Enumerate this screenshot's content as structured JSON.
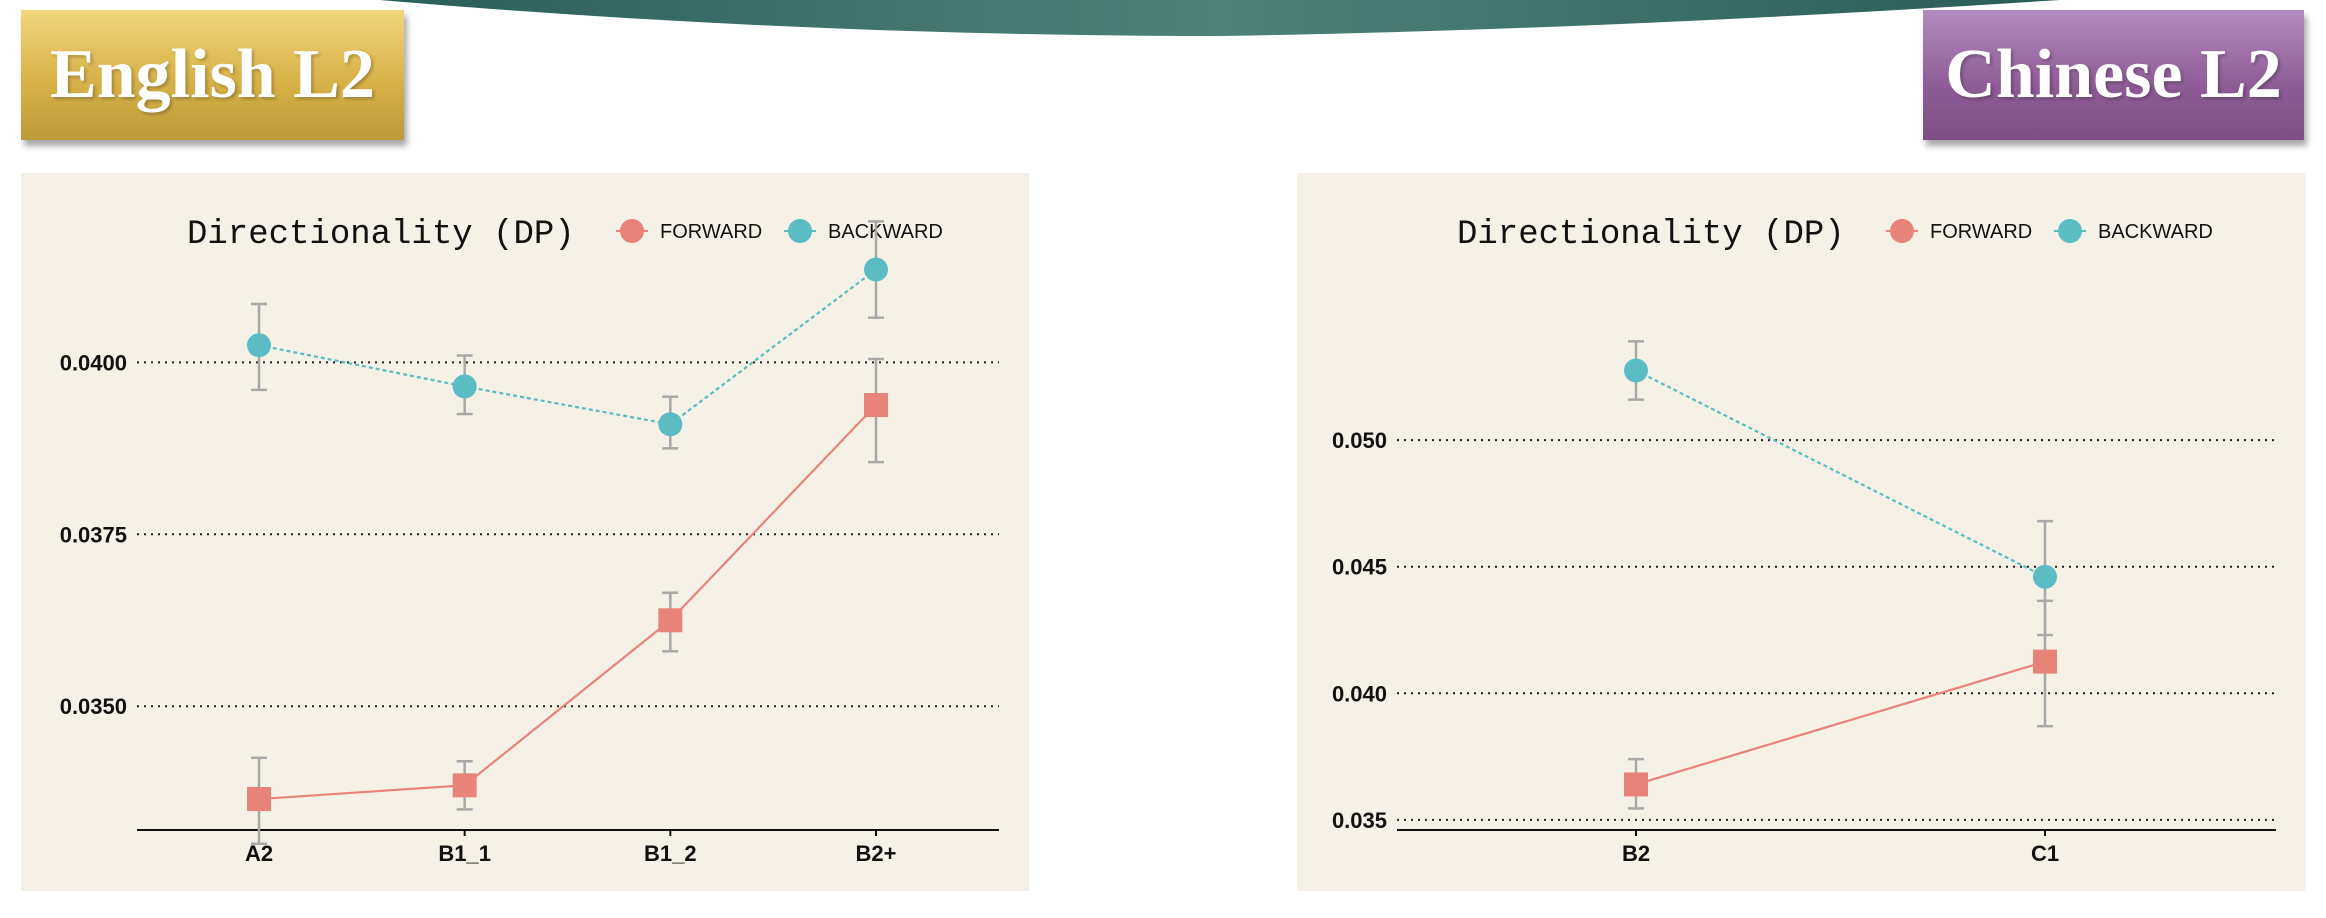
{
  "slide": {
    "left_heading": "English L2",
    "right_heading": "Chinese L2",
    "colors": {
      "banner": "#2f6b64",
      "left_heading_bg": "#d8b248",
      "right_heading_bg": "#8e5b96",
      "panel_bg": "#f6f1e6",
      "forward": "#e8837a",
      "backward": "#5bbcc4",
      "error_bar": "#a8a8a8"
    }
  },
  "chart_data": [
    {
      "type": "line",
      "title": "Directionality (DP)",
      "legend": {
        "placement": "top",
        "items": [
          "FORWARD",
          "BACKWARD"
        ]
      },
      "categories": [
        "A2",
        "B1_1",
        "B1_2",
        "B2+"
      ],
      "ylim": [
        0.0332,
        0.0413
      ],
      "yticks": [
        "0.0400",
        "0.0375",
        "0.0350"
      ],
      "ytick_values": [
        0.04,
        0.0375,
        0.035
      ],
      "grid": "horizontal dotted",
      "series": [
        {
          "name": "FORWARD",
          "marker": "square",
          "line": "solid",
          "values": [
            0.03365,
            0.03385,
            0.03625,
            0.03938
          ],
          "err_low": [
            0.033,
            0.0335,
            0.0358,
            0.03855
          ],
          "err_high": [
            0.03425,
            0.0342,
            0.03665,
            0.04005
          ]
        },
        {
          "name": "BACKWARD",
          "marker": "circle",
          "line": "dotted",
          "values": [
            0.04025,
            0.03965,
            0.0391,
            0.04135
          ],
          "err_low": [
            0.0396,
            0.03925,
            0.03875,
            0.04065
          ],
          "err_high": [
            0.04085,
            0.0401,
            0.0395,
            0.04205
          ]
        }
      ]
    },
    {
      "type": "line",
      "title": "Directionality (DP)",
      "legend": {
        "placement": "top",
        "items": [
          "FORWARD",
          "BACKWARD"
        ]
      },
      "categories": [
        "B2",
        "C1"
      ],
      "ylim": [
        0.0346,
        0.0566
      ],
      "yticks": [
        "0.050",
        "0.045",
        "0.040",
        "0.035"
      ],
      "ytick_values": [
        0.05,
        0.045,
        0.04,
        0.035
      ],
      "grid": "horizontal dotted",
      "series": [
        {
          "name": "FORWARD",
          "marker": "square",
          "line": "solid",
          "values": [
            0.0364,
            0.04125
          ],
          "err_low": [
            0.03545,
            0.0387
          ],
          "err_high": [
            0.0374,
            0.04365
          ]
        },
        {
          "name": "BACKWARD",
          "marker": "circle",
          "line": "dotted",
          "values": [
            0.05275,
            0.0446
          ],
          "err_low": [
            0.0516,
            0.0423
          ],
          "err_high": [
            0.0539,
            0.0468
          ]
        }
      ]
    }
  ]
}
